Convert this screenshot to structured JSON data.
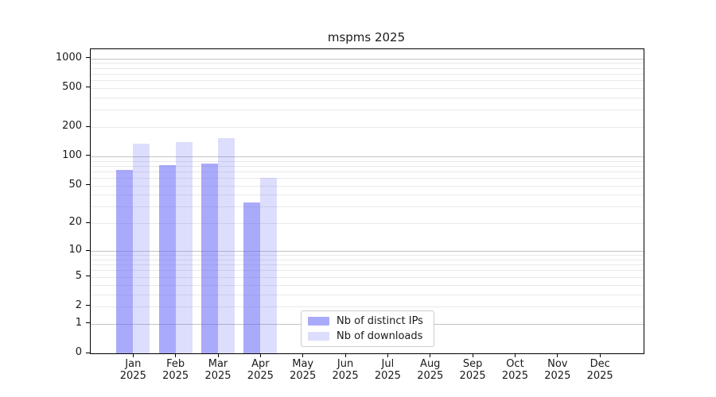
{
  "title": "mspms 2025",
  "chart_data": {
    "type": "bar",
    "title": "mspms 2025",
    "categories": [
      "Jan 2025",
      "Feb 2025",
      "Mar 2025",
      "Apr 2025",
      "May 2025",
      "Jun 2025",
      "Jul 2025",
      "Aug 2025",
      "Sep 2025",
      "Oct 2025",
      "Nov 2025",
      "Dec 2025"
    ],
    "series": [
      {
        "name": "Nb of distinct IPs",
        "color": "rgba(100,100,245,0.55)",
        "values": [
          73,
          82,
          84,
          33,
          0,
          0,
          0,
          0,
          0,
          0,
          0,
          0
        ]
      },
      {
        "name": "Nb of downloads",
        "color": "rgba(100,100,245,0.22)",
        "values": [
          135,
          140,
          155,
          60,
          0,
          0,
          0,
          0,
          0,
          0,
          0,
          0
        ]
      }
    ],
    "xlabel": "",
    "ylabel": "",
    "yscale": "log1p",
    "ylim": [
      0,
      1270
    ],
    "yticks": [
      0,
      1,
      2,
      5,
      10,
      20,
      50,
      100,
      200,
      500,
      1000
    ],
    "grid_major_values": [
      1,
      10,
      100,
      1000
    ],
    "grid_minor_values": [
      2,
      3,
      4,
      5,
      6,
      7,
      8,
      9,
      20,
      30,
      40,
      50,
      60,
      70,
      80,
      90,
      200,
      300,
      400,
      500,
      600,
      700,
      800,
      900
    ],
    "grid": "horizontal",
    "legend_position": "lower center"
  },
  "colors": {
    "bar_distinct_ips": "rgba(100,100,245,0.55)",
    "bar_downloads": "rgba(100,100,245,0.22)",
    "grid_major": "#c3c3c3",
    "grid_minor": "#e8e8e8",
    "spine": "#000000",
    "text": "#1a1a1a",
    "legend_border": "#cccccc"
  }
}
